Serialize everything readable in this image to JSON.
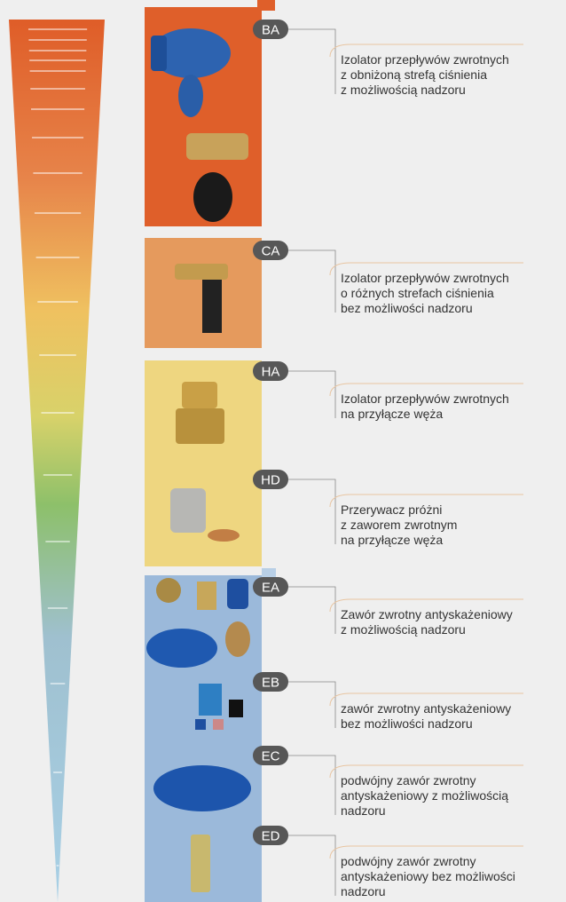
{
  "items": [
    {
      "code": "BA",
      "lines": [
        "Izolator przepływów zwrotnych",
        "z obniżoną strefą ciśnienia",
        "z możliwością nadzoru"
      ]
    },
    {
      "code": "CA",
      "lines": [
        "Izolator przepływów zwrotnych",
        "o różnych strefach ciśnienia",
        "bez możliwości nadzoru"
      ]
    },
    {
      "code": "HA",
      "lines": [
        "Izolator przepływów zwrotnych",
        "na przyłącze węża"
      ]
    },
    {
      "code": "HD",
      "lines": [
        "Przerywacz próżni",
        "z zaworem zwrotnym",
        "na przyłącze węża"
      ]
    },
    {
      "code": "EA",
      "lines": [
        "Zawór zwrotny antyskażeniowy",
        "z możliwością nadzoru"
      ]
    },
    {
      "code": "EB",
      "lines": [
        "zawór zwrotny antyskażeniowy",
        "bez możliwości nadzoru"
      ]
    },
    {
      "code": "EC",
      "lines": [
        "podwójny zawór zwrotny",
        "antyskażeniowy z możliwością",
        "nadzoru"
      ]
    },
    {
      "code": "ED",
      "lines": [
        "podwójny zawór zwrotny",
        "antyskażeniowy bez możliwości",
        "nadzoru"
      ]
    }
  ]
}
